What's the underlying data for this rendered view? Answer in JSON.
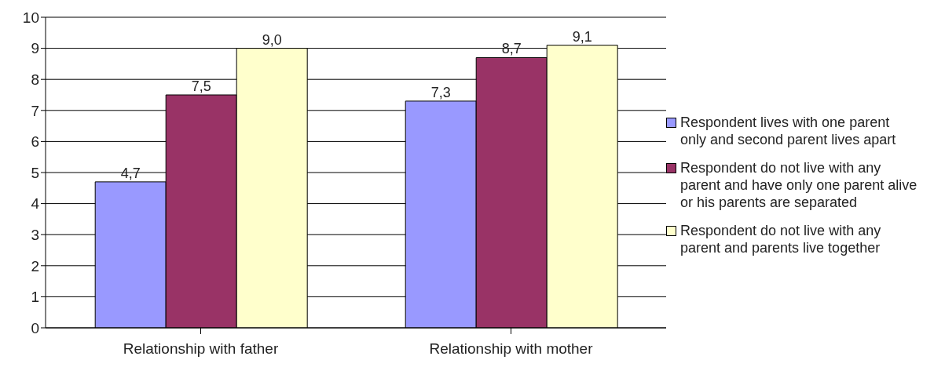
{
  "chart_data": {
    "type": "bar",
    "categories": [
      "Relationship with father",
      "Relationship with mother"
    ],
    "series": [
      {
        "name": "Respondent  lives with one parent only and second parent lives apart",
        "color": "#9999ff",
        "values": [
          4.7,
          7.3
        ],
        "value_labels": [
          "4,7",
          "7,3"
        ]
      },
      {
        "name": "Respondent  do not live with any parent and have only one parent alive or his parents are separated",
        "color": "#993366",
        "values": [
          7.5,
          8.7
        ],
        "value_labels": [
          "7,5",
          "8,7"
        ]
      },
      {
        "name": "Respondent  do not live with any parent and parents live together",
        "color": "#ffffcc",
        "values": [
          9.0,
          9.1
        ],
        "value_labels": [
          "9,0",
          "9,1"
        ]
      }
    ],
    "ylim": [
      0,
      10
    ],
    "yticks": [
      0,
      1,
      2,
      3,
      4,
      5,
      6,
      7,
      8,
      9,
      10
    ],
    "grid": "y",
    "legend": "right"
  }
}
